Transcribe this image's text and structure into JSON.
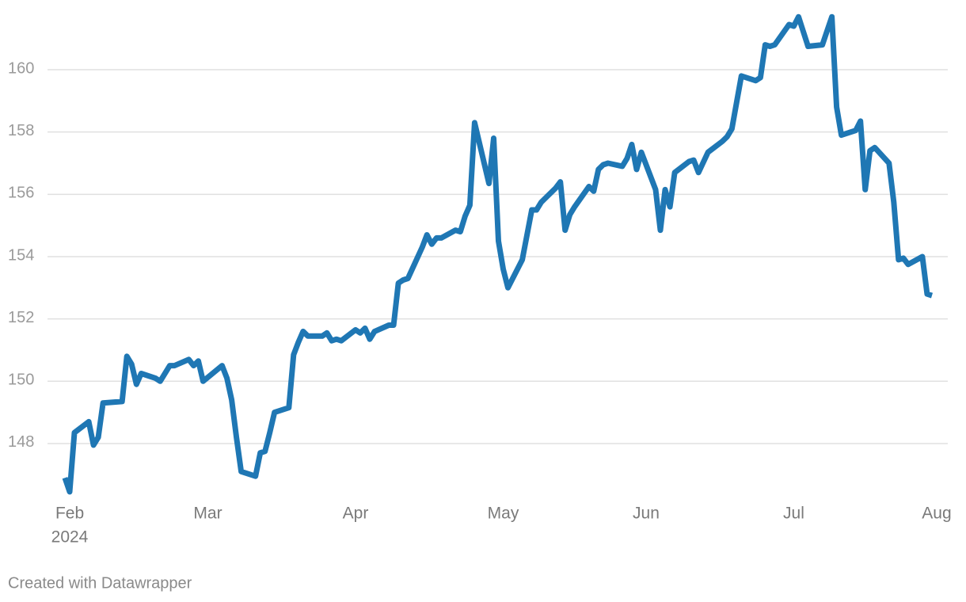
{
  "chart_data": {
    "type": "line",
    "x_sublabel": "2024",
    "credit": "Created with Datawrapper",
    "grid": true,
    "xlim": [
      -2,
      184
    ],
    "xticks": [
      {
        "value": 0,
        "label": "Feb"
      },
      {
        "value": 29,
        "label": "Mar"
      },
      {
        "value": 60,
        "label": "Apr"
      },
      {
        "value": 91,
        "label": "May"
      },
      {
        "value": 121,
        "label": "Jun"
      },
      {
        "value": 152,
        "label": "Jul"
      },
      {
        "value": 182,
        "label": "Aug"
      }
    ],
    "ylim": [
      146.3,
      161.9
    ],
    "yticks": [
      148,
      150,
      152,
      154,
      156,
      158,
      160
    ],
    "x": [
      -1,
      0,
      1,
      4,
      5,
      6,
      7,
      11,
      12,
      13,
      14,
      15,
      18,
      19,
      21,
      22,
      25,
      26,
      27,
      28,
      32,
      33,
      34,
      35,
      36,
      39,
      40,
      41,
      42,
      43,
      46,
      47,
      48,
      49,
      50,
      53,
      54,
      55,
      56,
      57,
      60,
      61,
      62,
      63,
      64,
      67,
      68,
      69,
      70,
      71,
      74,
      75,
      76,
      77,
      78,
      81,
      82,
      83,
      84,
      85,
      88,
      89,
      90,
      91,
      92,
      95,
      96,
      97,
      98,
      99,
      102,
      103,
      104,
      105,
      106,
      109,
      110,
      111,
      112,
      113,
      116,
      117,
      118,
      119,
      120,
      123,
      124,
      125,
      126,
      127,
      130,
      131,
      132,
      134,
      137,
      138,
      139,
      141,
      144,
      145,
      146,
      147,
      148,
      151,
      152,
      153,
      155,
      158,
      159,
      160,
      161,
      162,
      165,
      166,
      167,
      168,
      169,
      172,
      173,
      174,
      175,
      176,
      179,
      180,
      181
    ],
    "series": [
      {
        "color": "#1f77b4",
        "values": [
          146.9,
          146.45,
          148.35,
          148.7,
          147.95,
          148.2,
          149.3,
          149.35,
          150.8,
          150.55,
          149.9,
          150.25,
          150.1,
          150.0,
          150.5,
          150.5,
          150.7,
          150.5,
          150.65,
          150.0,
          150.5,
          150.1,
          149.4,
          148.2,
          147.1,
          146.95,
          147.7,
          147.75,
          148.35,
          149.0,
          149.15,
          150.85,
          151.25,
          151.6,
          151.45,
          151.45,
          151.55,
          151.3,
          151.35,
          151.3,
          151.65,
          151.55,
          151.7,
          151.35,
          151.6,
          151.8,
          151.8,
          153.15,
          153.25,
          153.3,
          154.3,
          154.7,
          154.4,
          154.6,
          154.6,
          154.85,
          154.8,
          155.3,
          155.65,
          158.3,
          156.35,
          157.8,
          154.5,
          153.6,
          153.0,
          153.9,
          154.7,
          155.5,
          155.5,
          155.75,
          156.2,
          156.4,
          154.85,
          155.35,
          155.6,
          156.25,
          156.1,
          156.8,
          156.95,
          157.0,
          156.9,
          157.15,
          157.6,
          156.8,
          157.35,
          156.15,
          154.85,
          156.15,
          155.6,
          156.7,
          157.05,
          157.1,
          156.7,
          157.35,
          157.7,
          157.85,
          158.1,
          159.8,
          159.65,
          159.75,
          160.8,
          160.75,
          160.8,
          161.45,
          161.4,
          161.7,
          160.75,
          160.8,
          161.25,
          161.7,
          158.8,
          157.9,
          158.05,
          158.35,
          156.15,
          157.4,
          157.5,
          157.0,
          155.75,
          153.9,
          153.95,
          153.75,
          154.0,
          152.8,
          152.75
        ]
      }
    ]
  }
}
